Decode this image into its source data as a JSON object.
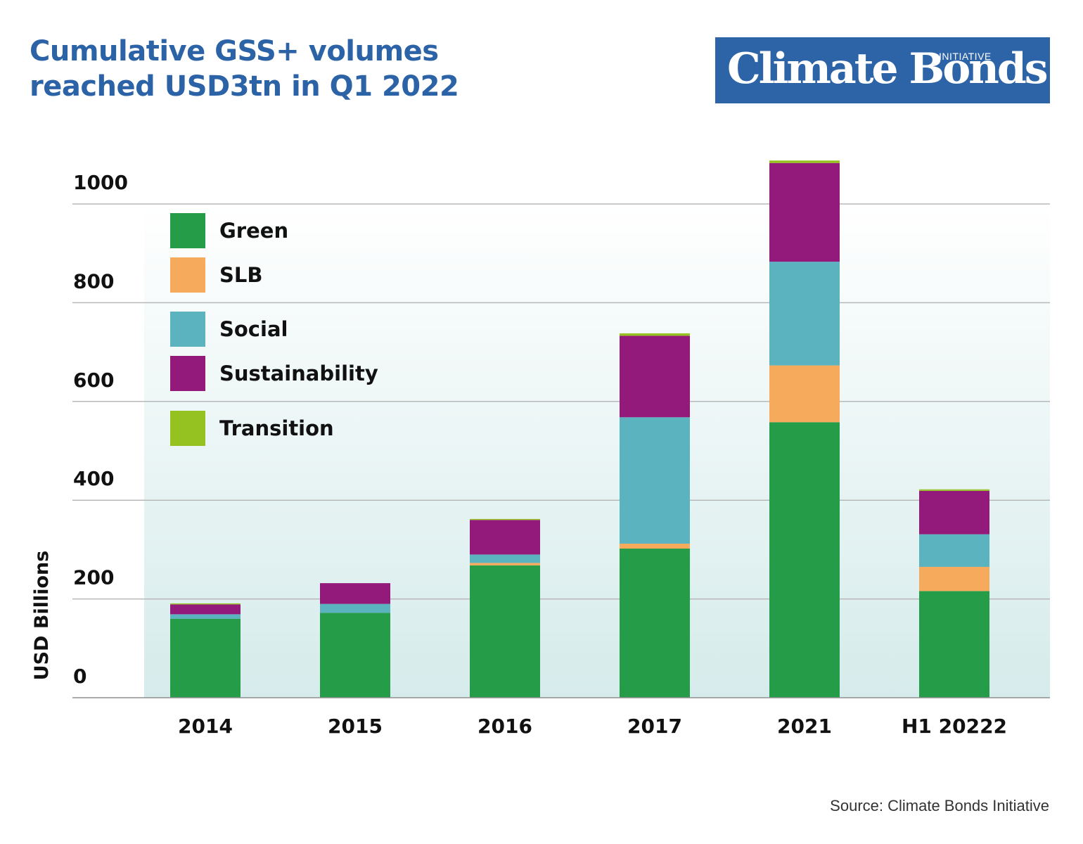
{
  "header": {
    "title_line1": "Cumulative GSS+ volumes",
    "title_line2": "reached USD3tn in Q1 2022",
    "logo_text": "Climate Bonds",
    "logo_subtext": "INITIATIVE"
  },
  "source": "Source: Climate Bonds Initiative",
  "colors": {
    "green": "#259c48",
    "slb": "#f6aa5c",
    "social": "#5cb3c0",
    "sustainability": "#931a7a",
    "transition": "#95c121",
    "title": "#2b63a6"
  },
  "chart_data": {
    "type": "bar",
    "stacked": true,
    "categories": [
      "2014",
      "2015",
      "2016",
      "2017",
      "2021",
      "H1 20222"
    ],
    "series": [
      {
        "name": "Green",
        "color": "#259c48",
        "values": [
          160,
          172,
          268,
          302,
          558,
          216
        ]
      },
      {
        "name": "SLB",
        "color": "#f6aa5c",
        "values": [
          0,
          0,
          5,
          10,
          115,
          49
        ]
      },
      {
        "name": "Social",
        "color": "#5cb3c0",
        "values": [
          9,
          18,
          17,
          256,
          210,
          66
        ]
      },
      {
        "name": "Sustainability",
        "color": "#931a7a",
        "values": [
          20,
          42,
          70,
          165,
          200,
          88
        ]
      },
      {
        "name": "Transition",
        "color": "#95c121",
        "values": [
          2,
          0,
          2,
          5,
          5,
          3
        ]
      }
    ],
    "ylabel": "USD Billions",
    "xlabel": "",
    "yticks": [
      0,
      200,
      400,
      600,
      800,
      1000
    ],
    "ylim": [
      0,
      1000
    ],
    "grid": true,
    "legend_position": "top-left"
  }
}
